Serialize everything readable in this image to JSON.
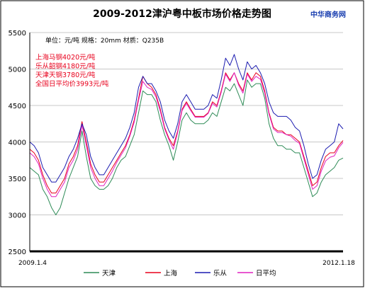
{
  "chart_data": {
    "type": "line",
    "title": "2009-2012津沪粤中板市场价格走势图",
    "watermark": "中华商务网",
    "spec_note": "单位：元/吨 规格：20mm 材质：Q235B",
    "annotations": [
      "上海马钢4020元/吨",
      "乐从韶钢4180元/吨",
      "天津天钢3780元/吨",
      "全国日平均价3993元/吨"
    ],
    "annotation_colors": [
      "#e8001c",
      "#e8001c",
      "#e8001c",
      "#e8001c"
    ],
    "x_start_label": "2009.1.4",
    "x_end_label": "2012.1.18",
    "y_ticks": [
      2500,
      3000,
      3500,
      4000,
      4500,
      5000,
      5500
    ],
    "ylim": [
      2500,
      5500
    ],
    "grid": "horizontal",
    "legend_position": "bottom",
    "series": [
      {
        "name": "天津",
        "color": "#2e8b57",
        "values": [
          3650,
          3600,
          3550,
          3350,
          3250,
          3100,
          3000,
          3100,
          3300,
          3500,
          3650,
          3800,
          4150,
          3800,
          3500,
          3400,
          3350,
          3350,
          3400,
          3500,
          3650,
          3750,
          3800,
          3950,
          4100,
          4400,
          4700,
          4650,
          4650,
          4550,
          4300,
          4100,
          3950,
          3750,
          4000,
          4300,
          4400,
          4300,
          4250,
          4250,
          4250,
          4300,
          4400,
          4350,
          4550,
          4750,
          4700,
          4800,
          4650,
          4500,
          4850,
          4750,
          4800,
          4800,
          4600,
          4250,
          4050,
          3950,
          3950,
          3900,
          3900,
          3850,
          3850,
          3650,
          3450,
          3250,
          3300,
          3450,
          3550,
          3600,
          3650,
          3750,
          3780
        ]
      },
      {
        "name": "上海",
        "color": "#e8001c",
        "values": [
          3900,
          3850,
          3750,
          3550,
          3400,
          3300,
          3300,
          3400,
          3500,
          3700,
          3800,
          3950,
          4280,
          4000,
          3700,
          3550,
          3450,
          3450,
          3550,
          3650,
          3750,
          3850,
          3950,
          4100,
          4300,
          4600,
          4900,
          4800,
          4750,
          4650,
          4450,
          4200,
          4050,
          3950,
          4150,
          4450,
          4550,
          4450,
          4350,
          4350,
          4350,
          4400,
          4550,
          4500,
          4700,
          4950,
          4850,
          4950,
          4800,
          4700,
          4950,
          4850,
          4950,
          4900,
          4700,
          4400,
          4200,
          4150,
          4150,
          4100,
          4100,
          4050,
          4000,
          3800,
          3600,
          3400,
          3450,
          3650,
          3800,
          3850,
          3850,
          3950,
          4020
        ]
      },
      {
        "name": "乐从",
        "color": "#1c1cb0",
        "values": [
          4000,
          3950,
          3850,
          3650,
          3550,
          3450,
          3450,
          3550,
          3650,
          3800,
          3900,
          4050,
          4250,
          4100,
          3800,
          3650,
          3550,
          3550,
          3650,
          3750,
          3850,
          3950,
          4050,
          4200,
          4400,
          4750,
          4900,
          4800,
          4800,
          4700,
          4550,
          4300,
          4150,
          4050,
          4250,
          4550,
          4650,
          4550,
          4450,
          4450,
          4450,
          4500,
          4650,
          4600,
          4850,
          5150,
          5050,
          5200,
          5000,
          4850,
          5100,
          5000,
          5050,
          4950,
          4800,
          4550,
          4400,
          4350,
          4350,
          4350,
          4300,
          4200,
          4150,
          3950,
          3700,
          3500,
          3550,
          3750,
          3900,
          3950,
          4000,
          4250,
          4180
        ]
      },
      {
        "name": "日平均",
        "color": "#e020c0",
        "values": [
          3850,
          3800,
          3700,
          3500,
          3350,
          3250,
          3250,
          3350,
          3450,
          3650,
          3750,
          3900,
          4230,
          3950,
          3650,
          3500,
          3400,
          3400,
          3500,
          3600,
          3720,
          3820,
          3920,
          4080,
          4270,
          4570,
          4830,
          4750,
          4720,
          4620,
          4420,
          4180,
          4030,
          3900,
          4130,
          4430,
          4530,
          4430,
          4340,
          4340,
          4340,
          4390,
          4530,
          4480,
          4680,
          4930,
          4830,
          4950,
          4780,
          4670,
          4930,
          4830,
          4900,
          4860,
          4670,
          4380,
          4180,
          4130,
          4130,
          4100,
          4080,
          4020,
          3980,
          3770,
          3560,
          3350,
          3400,
          3600,
          3740,
          3790,
          3810,
          3920,
          3993
        ]
      }
    ]
  }
}
